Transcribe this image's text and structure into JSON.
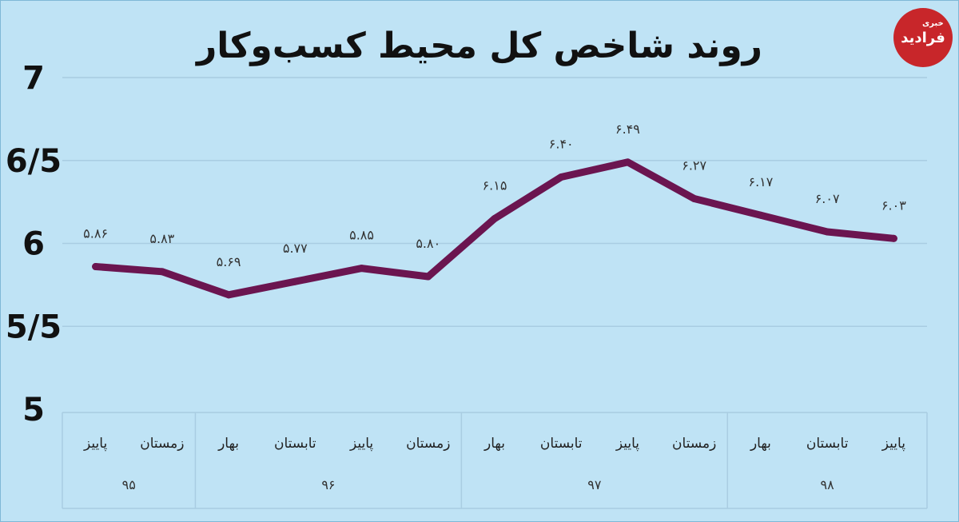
{
  "title": "روند شاخص کل محیط کسب‌وکار",
  "logo": {
    "text": "فرادید",
    "mark": "خبری"
  },
  "chart_data": {
    "type": "line",
    "title": "روند شاخص کل محیط کسب‌وکار",
    "ylim": [
      5,
      7
    ],
    "y_ticks": [
      {
        "value": 7,
        "label": "7"
      },
      {
        "value": 6.5,
        "label": "6/5"
      },
      {
        "value": 6,
        "label": "6"
      },
      {
        "value": 5.5,
        "label": "5/5"
      },
      {
        "value": 5,
        "label": "5"
      }
    ],
    "grid": true,
    "line_color": "#6b1550",
    "points": [
      {
        "season": "پاییز",
        "year": "۹۵",
        "value": 5.86,
        "label": "۵.۸۶"
      },
      {
        "season": "زمستان",
        "year": "۹۵",
        "value": 5.83,
        "label": "۵.۸۳"
      },
      {
        "season": "بهار",
        "year": "۹۶",
        "value": 5.69,
        "label": "۵.۶۹"
      },
      {
        "season": "تابستان",
        "year": "۹۶",
        "value": 5.77,
        "label": "۵.۷۷"
      },
      {
        "season": "پاییز",
        "year": "۹۶",
        "value": 5.85,
        "label": "۵.۸۵"
      },
      {
        "season": "زمستان",
        "year": "۹۶",
        "value": 5.8,
        "label": "۵.۸۰"
      },
      {
        "season": "بهار",
        "year": "۹۷",
        "value": 6.15,
        "label": "۶.۱۵"
      },
      {
        "season": "تابستان",
        "year": "۹۷",
        "value": 6.4,
        "label": "۶.۴۰"
      },
      {
        "season": "پاییز",
        "year": "۹۷",
        "value": 6.49,
        "label": "۶.۴۹"
      },
      {
        "season": "زمستان",
        "year": "۹۷",
        "value": 6.27,
        "label": "۶.۲۷"
      },
      {
        "season": "بهار",
        "year": "۹۸",
        "value": 6.17,
        "label": "۶.۱۷"
      },
      {
        "season": "تابستان",
        "year": "۹۸",
        "value": 6.07,
        "label": "۶.۰۷"
      },
      {
        "season": "پاییز",
        "year": "۹۸",
        "value": 6.03,
        "label": "۶.۰۳"
      }
    ],
    "year_groups": [
      {
        "year": "۹۵",
        "count": 2
      },
      {
        "year": "۹۶",
        "count": 4
      },
      {
        "year": "۹۷",
        "count": 4
      },
      {
        "year": "۹۸",
        "count": 3
      }
    ]
  }
}
